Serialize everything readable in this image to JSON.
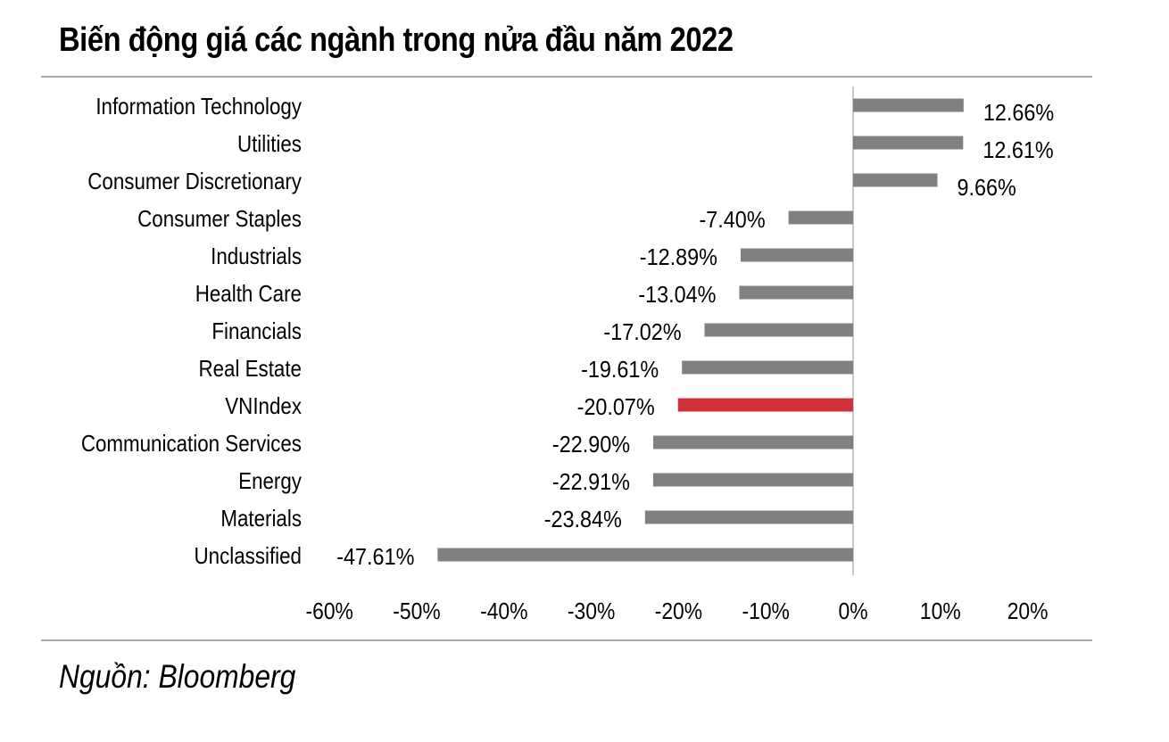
{
  "title": "Biến động giá các ngành trong nửa đầu năm 2022",
  "source": "Nguồn: Bloomberg",
  "colors": {
    "bar": "#808080",
    "highlight": "#d1323a",
    "axis": "#c8c8c8",
    "rule": "#a8a8a8"
  },
  "chart_data": {
    "type": "bar",
    "orientation": "horizontal",
    "categories": [
      "Information Technology",
      "Utilities",
      "Consumer Discretionary",
      "Consumer Staples",
      "Industrials",
      "Health Care",
      "Financials",
      "Real Estate",
      "VNIndex",
      "Communication Services",
      "Energy",
      "Materials",
      "Unclassified"
    ],
    "values": [
      12.66,
      12.61,
      9.66,
      -7.4,
      -12.89,
      -13.04,
      -17.02,
      -19.61,
      -20.07,
      -22.9,
      -22.91,
      -23.84,
      -47.61
    ],
    "value_labels": [
      "12.66%",
      "12.61%",
      "9.66%",
      "-7.40%",
      "-12.89%",
      "-13.04%",
      "-17.02%",
      "-19.61%",
      "-20.07%",
      "-22.90%",
      "-22.91%",
      "-23.84%",
      "-47.61%"
    ],
    "highlight_category": "VNIndex",
    "xlim": [
      -60,
      20
    ],
    "xticks": [
      -60,
      -50,
      -40,
      -30,
      -20,
      -10,
      0,
      10,
      20
    ],
    "xtick_labels": [
      "-60%",
      "-50%",
      "-40%",
      "-30%",
      "-20%",
      "-10%",
      "0%",
      "10%",
      "20%"
    ],
    "xlabel": "",
    "ylabel": "",
    "grid": false,
    "legend": "none"
  }
}
